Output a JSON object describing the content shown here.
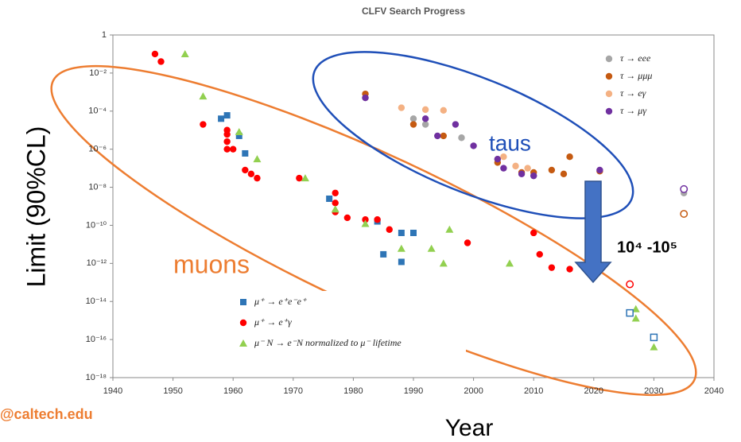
{
  "chart_data": {
    "type": "scatter",
    "title": "CLFV Search Progress",
    "x_label": "Year",
    "y_label": "Limit (90%CL)",
    "ylog": true,
    "xlim": [
      1940,
      2040
    ],
    "xticks": [
      1940,
      1950,
      1960,
      1970,
      1980,
      1990,
      2000,
      2010,
      2020,
      2030,
      2040
    ],
    "ylim": [
      1e-18,
      1
    ],
    "yticks": [
      1,
      {
        "value": 0.01,
        "label": "10⁻²"
      },
      {
        "value": 0.0001,
        "label": "10⁻⁴"
      },
      {
        "value": 1e-06,
        "label": "10⁻⁶"
      },
      {
        "value": 1e-08,
        "label": "10⁻⁸"
      },
      {
        "value": 1e-10,
        "label": "10⁻¹⁰"
      },
      {
        "value": 1e-12,
        "label": "10⁻¹²"
      },
      {
        "value": 1e-14,
        "label": "10⁻¹⁴"
      },
      {
        "value": 1e-16,
        "label": "10⁻¹⁶"
      },
      {
        "value": 1e-18,
        "label": "10⁻¹⁸"
      }
    ],
    "annotations": [
      "taus",
      "muons",
      "10⁴ -10⁵",
      "@caltech.edu"
    ],
    "series": [
      {
        "name": "τ → eee",
        "color": "#a6a6a6",
        "marker": "circle",
        "legend": "tau",
        "x": [
          1982,
          1990,
          1992,
          1998,
          2004,
          2010,
          2035
        ],
        "values": [
          0.0005,
          4e-05,
          2e-05,
          4e-06,
          3e-07,
          4e-08,
          5e-09
        ]
      },
      {
        "name": "τ → μμμ",
        "color": "#c55a11",
        "marker": "circle",
        "legend": "tau",
        "x": [
          1982,
          1990,
          1995,
          2004,
          2008,
          2010,
          2013,
          2015,
          2016,
          2021
        ],
        "values": [
          0.0008,
          2e-05,
          5e-06,
          2e-07,
          6e-08,
          6e-08,
          8e-08,
          5e-08,
          4e-07,
          7e-08
        ]
      },
      {
        "name": "τ → eγ",
        "color": "#f4b183",
        "marker": "circle",
        "legend": "tau",
        "x": [
          1988,
          1992,
          1995,
          2005,
          2007,
          2009
        ],
        "values": [
          0.00015,
          0.00012,
          0.00011,
          4e-07,
          1.3e-07,
          1e-07
        ]
      },
      {
        "name": "τ → μγ",
        "color": "#7030a0",
        "marker": "circle",
        "legend": "tau",
        "x": [
          1982,
          1992,
          1994,
          1997,
          2000,
          2004,
          2005,
          2008,
          2010,
          2021
        ],
        "values": [
          0.0005,
          4e-05,
          5e-06,
          2e-05,
          1.5e-06,
          3e-07,
          1e-07,
          5e-08,
          4e-08,
          8e-08
        ]
      },
      {
        "color": "#c55a11",
        "marker": "circle",
        "hollow": true,
        "x": [
          2035
        ],
        "values": [
          4e-10
        ]
      },
      {
        "color": "#7030a0",
        "marker": "circle",
        "hollow": true,
        "x": [
          2035
        ],
        "values": [
          8e-09
        ]
      },
      {
        "name": "μ⁺ → e⁺e⁻e⁺",
        "color": "#2e75b6",
        "marker": "square",
        "legend": "mu",
        "x": [
          1958,
          1959,
          1961,
          1962,
          1976,
          1984,
          1985,
          1988,
          1988,
          1990
        ],
        "values": [
          4e-05,
          6e-05,
          5e-06,
          6e-07,
          2.5e-09,
          1.6e-10,
          3e-12,
          4e-11,
          1.2e-12,
          4e-11
        ]
      },
      {
        "name": "μ⁺ → e⁺γ",
        "color": "#ff0000",
        "marker": "circle",
        "legend": "mu",
        "x": [
          1947,
          1948,
          1955,
          1959,
          1959,
          1959,
          1959,
          1960,
          1962,
          1963,
          1964,
          1971,
          1977,
          1977,
          1977,
          1979,
          1982,
          1984,
          1986,
          1999,
          2010,
          2011,
          2013,
          2016
        ],
        "values": [
          0.1,
          0.04,
          2e-05,
          1e-05,
          6e-06,
          2.5e-06,
          1e-06,
          1e-06,
          8e-08,
          5e-08,
          3e-08,
          3e-08,
          5e-09,
          1.5e-09,
          5e-10,
          2.5e-10,
          2e-10,
          2e-10,
          6e-11,
          1.2e-11,
          4e-11,
          3e-12,
          6e-13,
          5e-13
        ]
      },
      {
        "name": "μ⁻ N → e⁻N normalized to μ⁻ lifetime",
        "color": "#92d050",
        "marker": "triangle",
        "legend": "mu",
        "x": [
          1952,
          1955,
          1961,
          1964,
          1972,
          1977,
          1982,
          1988,
          1993,
          1995,
          1996,
          2006,
          2027,
          2027,
          2030
        ],
        "values": [
          0.1,
          0.0006,
          8e-06,
          3e-07,
          3e-08,
          7e-10,
          1.2e-10,
          6e-12,
          6e-12,
          1e-12,
          6e-11,
          1e-12,
          4e-15,
          1.3e-15,
          4e-17
        ]
      },
      {
        "color": "#ff0000",
        "marker": "circle",
        "hollow": true,
        "x": [
          2026
        ],
        "values": [
          8e-14
        ]
      },
      {
        "color": "#2e75b6",
        "marker": "square",
        "hollow": true,
        "x": [
          2026,
          2030
        ],
        "values": [
          2.5e-15,
          1.3e-16
        ]
      }
    ]
  }
}
